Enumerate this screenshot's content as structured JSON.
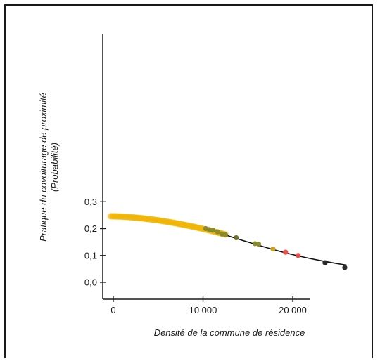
{
  "chart_data": {
    "type": "scatter",
    "xlabel": "Densité de la commune de résidence",
    "ylabel_line1": "Pratique du covoiturage de proximité",
    "ylabel_line2": "(Probabilité)",
    "xlim": [
      -1000,
      27000
    ],
    "ylim": [
      -0.01,
      0.31
    ],
    "x_ticks": [
      {
        "value": 0,
        "label": "0"
      },
      {
        "value": 10000,
        "label": "10 000"
      },
      {
        "value": 20000,
        "label": "20 000"
      }
    ],
    "y_ticks": [
      {
        "value": 0.0,
        "label": "0,0"
      },
      {
        "value": 0.1,
        "label": "0,1"
      },
      {
        "value": 0.2,
        "label": "0,2"
      },
      {
        "value": 0.3,
        "label": "0,3"
      }
    ],
    "grid": false,
    "colors": {
      "axis": "#1a1a1a",
      "curve": "#111111",
      "dense_points": "#f0b400",
      "olive_points": "#8a8a2a",
      "red_points": "#e8504a",
      "dark_points": "#2a2a2a"
    },
    "curve": [
      {
        "x": 10000,
        "y": 0.203
      },
      {
        "x": 12000,
        "y": 0.182
      },
      {
        "x": 14000,
        "y": 0.16
      },
      {
        "x": 16000,
        "y": 0.14
      },
      {
        "x": 18000,
        "y": 0.12
      },
      {
        "x": 20000,
        "y": 0.103
      },
      {
        "x": 22000,
        "y": 0.088
      },
      {
        "x": 24000,
        "y": 0.075
      },
      {
        "x": 26000,
        "y": 0.064
      }
    ],
    "points": [
      {
        "x": 10300,
        "y": 0.2,
        "color": "#8a8a2a"
      },
      {
        "x": 10700,
        "y": 0.196,
        "color": "#8a8a2a"
      },
      {
        "x": 11100,
        "y": 0.194,
        "color": "#8a8a2a"
      },
      {
        "x": 11600,
        "y": 0.188,
        "color": "#8a8a2a"
      },
      {
        "x": 12100,
        "y": 0.18,
        "color": "#8a8a2a"
      },
      {
        "x": 12500,
        "y": 0.177,
        "color": "#8a8a2a"
      },
      {
        "x": 13700,
        "y": 0.166,
        "color": "#6b6b2a"
      },
      {
        "x": 15800,
        "y": 0.144,
        "color": "#8a8a2a"
      },
      {
        "x": 16200,
        "y": 0.142,
        "color": "#8a8a2a"
      },
      {
        "x": 17800,
        "y": 0.124,
        "color": "#c8a020"
      },
      {
        "x": 19200,
        "y": 0.112,
        "color": "#e8504a"
      },
      {
        "x": 20600,
        "y": 0.1,
        "color": "#e8504a"
      },
      {
        "x": 23600,
        "y": 0.073,
        "color": "#2a2a2a"
      },
      {
        "x": 25800,
        "y": 0.055,
        "color": "#2a2a2a"
      }
    ],
    "dense_band": {
      "x_start": -300,
      "x_end": 12500,
      "y_at_start": 0.246,
      "y_at_end": 0.178,
      "color": "#f0b400"
    }
  }
}
